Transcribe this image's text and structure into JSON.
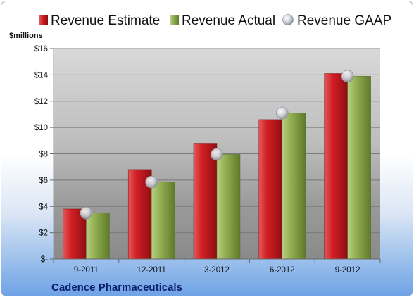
{
  "chart_data": {
    "type": "bar",
    "unit_label": "$millions",
    "company": "Cadence Pharmaceuticals",
    "categories": [
      "9-2011",
      "12-2011",
      "3-2012",
      "6-2012",
      "9-2012"
    ],
    "ylim": [
      0,
      16
    ],
    "yticks": [
      {
        "value": 0,
        "label": "$-"
      },
      {
        "value": 2,
        "label": "$2"
      },
      {
        "value": 4,
        "label": "$4"
      },
      {
        "value": 6,
        "label": "$6"
      },
      {
        "value": 8,
        "label": "$8"
      },
      {
        "value": 10,
        "label": "$10"
      },
      {
        "value": 12,
        "label": "$12"
      },
      {
        "value": 14,
        "label": "$14"
      },
      {
        "value": 16,
        "label": "$16"
      }
    ],
    "grid": true,
    "legend_position": "top",
    "series": [
      {
        "name": "Revenue Estimate",
        "type": "bar",
        "color": "#cc1f24",
        "values": [
          3.8,
          6.8,
          8.8,
          10.6,
          14.1
        ]
      },
      {
        "name": "Revenue Actual",
        "type": "bar",
        "color": "#8fae4e",
        "values": [
          3.5,
          5.85,
          7.95,
          11.1,
          13.9
        ]
      },
      {
        "name": "Revenue GAAP",
        "type": "marker",
        "color": "#c9ced6",
        "values": [
          3.5,
          5.85,
          7.95,
          11.1,
          13.9
        ]
      }
    ]
  }
}
